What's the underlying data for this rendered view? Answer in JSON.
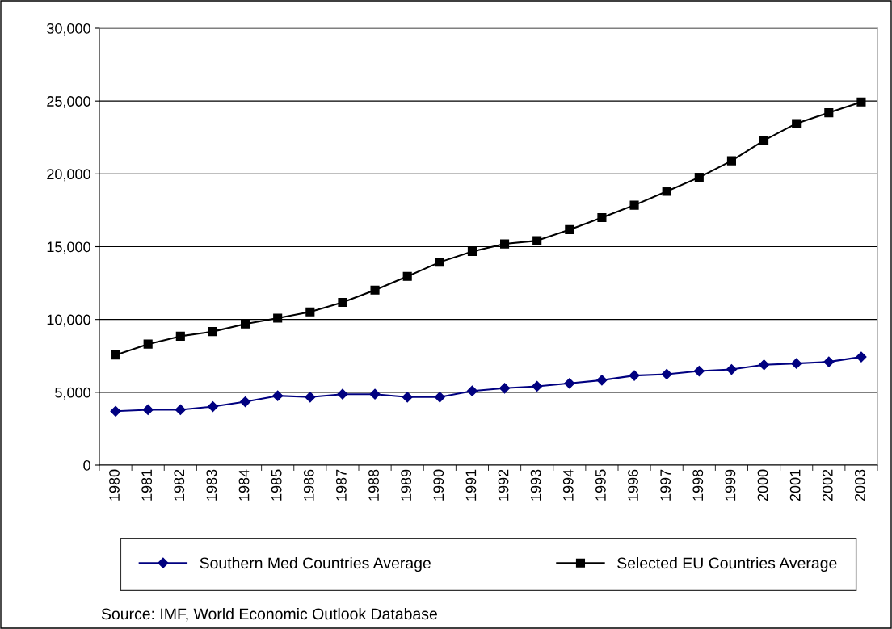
{
  "chart_data": {
    "type": "line",
    "categories": [
      "1980",
      "1981",
      "1982",
      "1983",
      "1984",
      "1985",
      "1986",
      "1987",
      "1988",
      "1989",
      "1990",
      "1991",
      "1992",
      "1993",
      "1994",
      "1995",
      "1996",
      "1997",
      "1998",
      "1999",
      "2000",
      "2001",
      "2002",
      "2003"
    ],
    "series": [
      {
        "name": "Southern Med Countries Average",
        "color": "#000080",
        "marker": "diamond",
        "values": [
          3700,
          3800,
          3800,
          4020,
          4350,
          4760,
          4670,
          4870,
          4870,
          4670,
          4670,
          5090,
          5280,
          5410,
          5610,
          5830,
          6150,
          6240,
          6460,
          6570,
          6890,
          6980,
          7090,
          7430
        ]
      },
      {
        "name": "Selected EU Countries Average",
        "color": "#000000",
        "marker": "square",
        "values": [
          7560,
          8310,
          8850,
          9170,
          9690,
          10090,
          10520,
          11170,
          12020,
          12960,
          13940,
          14670,
          15190,
          15410,
          16170,
          17000,
          17850,
          18800,
          19760,
          20900,
          22300,
          23460,
          24200,
          24940
        ]
      }
    ],
    "ylim": [
      0,
      30000
    ],
    "yticks": [
      {
        "value": 0,
        "label": "0"
      },
      {
        "value": 5000,
        "label": "5,000"
      },
      {
        "value": 10000,
        "label": "10,000"
      },
      {
        "value": 15000,
        "label": "15,000"
      },
      {
        "value": 20000,
        "label": "20,000"
      },
      {
        "value": 25000,
        "label": "25,000"
      },
      {
        "value": 30000,
        "label": "30,000"
      }
    ],
    "grid": "y",
    "legend": "bottom",
    "line_style": "solid",
    "annotations": [
      "Source: IMF, World Economic Outlook Database"
    ]
  }
}
